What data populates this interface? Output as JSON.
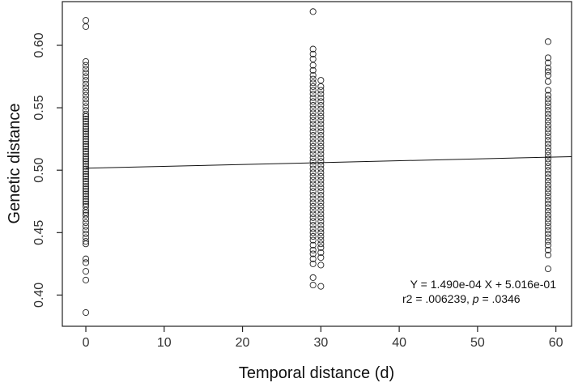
{
  "chart_data": {
    "type": "scatter",
    "title": "",
    "xlabel": "Temporal distance (d)",
    "ylabel": "Genetic distance",
    "xlim": [
      -3,
      62
    ],
    "ylim": [
      0.375,
      0.635
    ],
    "xticks": [
      0,
      10,
      20,
      30,
      40,
      50,
      60
    ],
    "xtick_labels": [
      "0",
      "10",
      "20",
      "30",
      "40",
      "50",
      "60"
    ],
    "yticks": [
      0.4,
      0.45,
      0.5,
      0.55,
      0.6
    ],
    "ytick_labels": [
      "0.40",
      "0.45",
      "0.50",
      "0.55",
      "0.60"
    ],
    "grid": false,
    "legend": "none",
    "regression": {
      "slope": 0.000149,
      "intercept": 0.5016
    },
    "annotation": {
      "equation": "Y = 1.490e-04 X + 5.016e-01",
      "r2_text": "r2 = .006239, ",
      "p_label": "p",
      "p_value": " = .0346"
    },
    "series": [
      {
        "x_values": [
          0,
          29,
          30,
          59
        ],
        "points": {
          "0": [
            0.386,
            0.412,
            0.419,
            0.426,
            0.429,
            0.441,
            0.443,
            0.446,
            0.449,
            0.452,
            0.455,
            0.458,
            0.461,
            0.464,
            0.466,
            0.468,
            0.471,
            0.473,
            0.475,
            0.477,
            0.479,
            0.481,
            0.483,
            0.485,
            0.487,
            0.489,
            0.491,
            0.493,
            0.495,
            0.497,
            0.499,
            0.501,
            0.503,
            0.505,
            0.507,
            0.509,
            0.511,
            0.513,
            0.515,
            0.517,
            0.519,
            0.521,
            0.523,
            0.525,
            0.527,
            0.529,
            0.531,
            0.533,
            0.535,
            0.537,
            0.539,
            0.541,
            0.543,
            0.545,
            0.548,
            0.551,
            0.554,
            0.557,
            0.56,
            0.563,
            0.566,
            0.569,
            0.572,
            0.575,
            0.578,
            0.581,
            0.584,
            0.587,
            0.615,
            0.62
          ],
          "29": [
            0.408,
            0.414,
            0.425,
            0.429,
            0.433,
            0.436,
            0.44,
            0.444,
            0.447,
            0.45,
            0.453,
            0.456,
            0.459,
            0.462,
            0.465,
            0.468,
            0.471,
            0.474,
            0.477,
            0.48,
            0.483,
            0.486,
            0.489,
            0.492,
            0.495,
            0.498,
            0.501,
            0.504,
            0.507,
            0.51,
            0.513,
            0.516,
            0.519,
            0.522,
            0.525,
            0.528,
            0.531,
            0.534,
            0.537,
            0.54,
            0.543,
            0.546,
            0.549,
            0.552,
            0.555,
            0.558,
            0.561,
            0.564,
            0.567,
            0.57,
            0.573,
            0.576,
            0.58,
            0.584,
            0.589,
            0.593,
            0.597,
            0.627
          ],
          "30": [
            0.407,
            0.424,
            0.43,
            0.434,
            0.438,
            0.441,
            0.444,
            0.447,
            0.45,
            0.453,
            0.456,
            0.459,
            0.462,
            0.465,
            0.468,
            0.471,
            0.474,
            0.477,
            0.48,
            0.483,
            0.486,
            0.489,
            0.492,
            0.495,
            0.498,
            0.501,
            0.504,
            0.507,
            0.51,
            0.513,
            0.516,
            0.519,
            0.522,
            0.525,
            0.528,
            0.531,
            0.534,
            0.537,
            0.54,
            0.543,
            0.546,
            0.549,
            0.552,
            0.555,
            0.558,
            0.561,
            0.564,
            0.567,
            0.572
          ],
          "59": [
            0.421,
            0.432,
            0.436,
            0.44,
            0.443,
            0.446,
            0.449,
            0.452,
            0.455,
            0.458,
            0.461,
            0.464,
            0.467,
            0.47,
            0.473,
            0.476,
            0.479,
            0.482,
            0.485,
            0.488,
            0.491,
            0.494,
            0.497,
            0.5,
            0.503,
            0.506,
            0.509,
            0.512,
            0.515,
            0.518,
            0.521,
            0.524,
            0.527,
            0.53,
            0.533,
            0.536,
            0.539,
            0.542,
            0.545,
            0.548,
            0.551,
            0.554,
            0.557,
            0.56,
            0.564,
            0.571,
            0.576,
            0.579,
            0.582,
            0.586,
            0.59,
            0.603
          ]
        }
      }
    ]
  }
}
